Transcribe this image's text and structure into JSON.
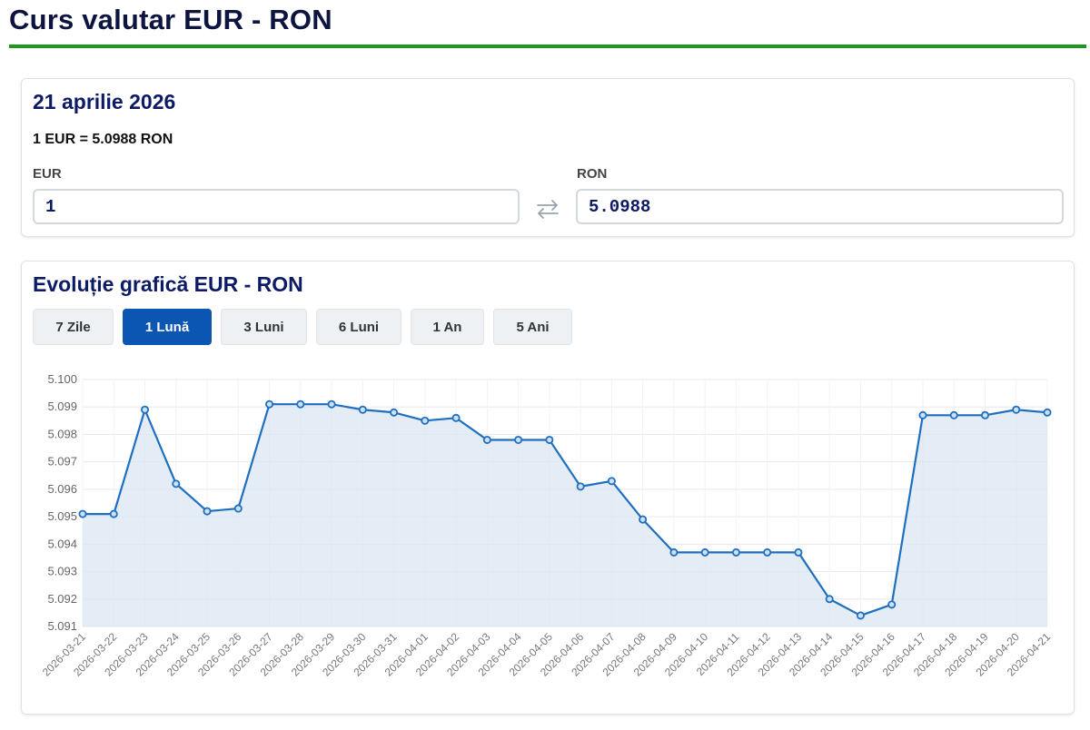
{
  "header": {
    "title": "Curs valutar EUR - RON"
  },
  "converter": {
    "date": "21 aprilie 2026",
    "rate_text": "1 EUR = 5.0988 RON",
    "from_label": "EUR",
    "to_label": "RON",
    "from_value": "1",
    "to_value": "5.0988",
    "swap_icon": "swap-arrows-icon"
  },
  "chart_section": {
    "title": "Evoluție grafică EUR - RON",
    "ranges": [
      {
        "label": "7 Zile",
        "active": false
      },
      {
        "label": "1 Lună",
        "active": true
      },
      {
        "label": "3 Luni",
        "active": false
      },
      {
        "label": "6 Luni",
        "active": false
      },
      {
        "label": "1 An",
        "active": false
      },
      {
        "label": "5 Ani",
        "active": false
      }
    ]
  },
  "colors": {
    "title_rule": "#1a9a1a",
    "line": "#1f6fc0",
    "fill": "#dbe6f3",
    "active_tab": "#0b56b3"
  },
  "chart_data": {
    "type": "area",
    "title": "",
    "xlabel": "",
    "ylabel": "",
    "ylim": [
      5.091,
      5.1
    ],
    "yticks": [
      "5.091",
      "5.092",
      "5.093",
      "5.094",
      "5.095",
      "5.096",
      "5.097",
      "5.098",
      "5.099",
      "5.100"
    ],
    "grid": true,
    "x": [
      "2026-03-21",
      "2026-03-22",
      "2026-03-23",
      "2026-03-24",
      "2026-03-25",
      "2026-03-26",
      "2026-03-27",
      "2026-03-28",
      "2026-03-29",
      "2026-03-30",
      "2026-03-31",
      "2026-04-01",
      "2026-04-02",
      "2026-04-03",
      "2026-04-04",
      "2026-04-05",
      "2026-04-06",
      "2026-04-07",
      "2026-04-08",
      "2026-04-09",
      "2026-04-10",
      "2026-04-11",
      "2026-04-12",
      "2026-04-13",
      "2026-04-14",
      "2026-04-15",
      "2026-04-16",
      "2026-04-17",
      "2026-04-18",
      "2026-04-19",
      "2026-04-20",
      "2026-04-21"
    ],
    "series": [
      {
        "values": [
          5.0951,
          5.0951,
          5.0989,
          5.0962,
          5.0952,
          5.0953,
          5.0991,
          5.0991,
          5.0991,
          5.0989,
          5.0988,
          5.0985,
          5.0986,
          5.0978,
          5.0978,
          5.0978,
          5.0961,
          5.0963,
          5.0949,
          5.0937,
          5.0937,
          5.0937,
          5.0937,
          5.0937,
          5.092,
          5.0914,
          5.0918,
          5.0987,
          5.0987,
          5.0987,
          5.0989,
          5.0988
        ]
      }
    ]
  }
}
